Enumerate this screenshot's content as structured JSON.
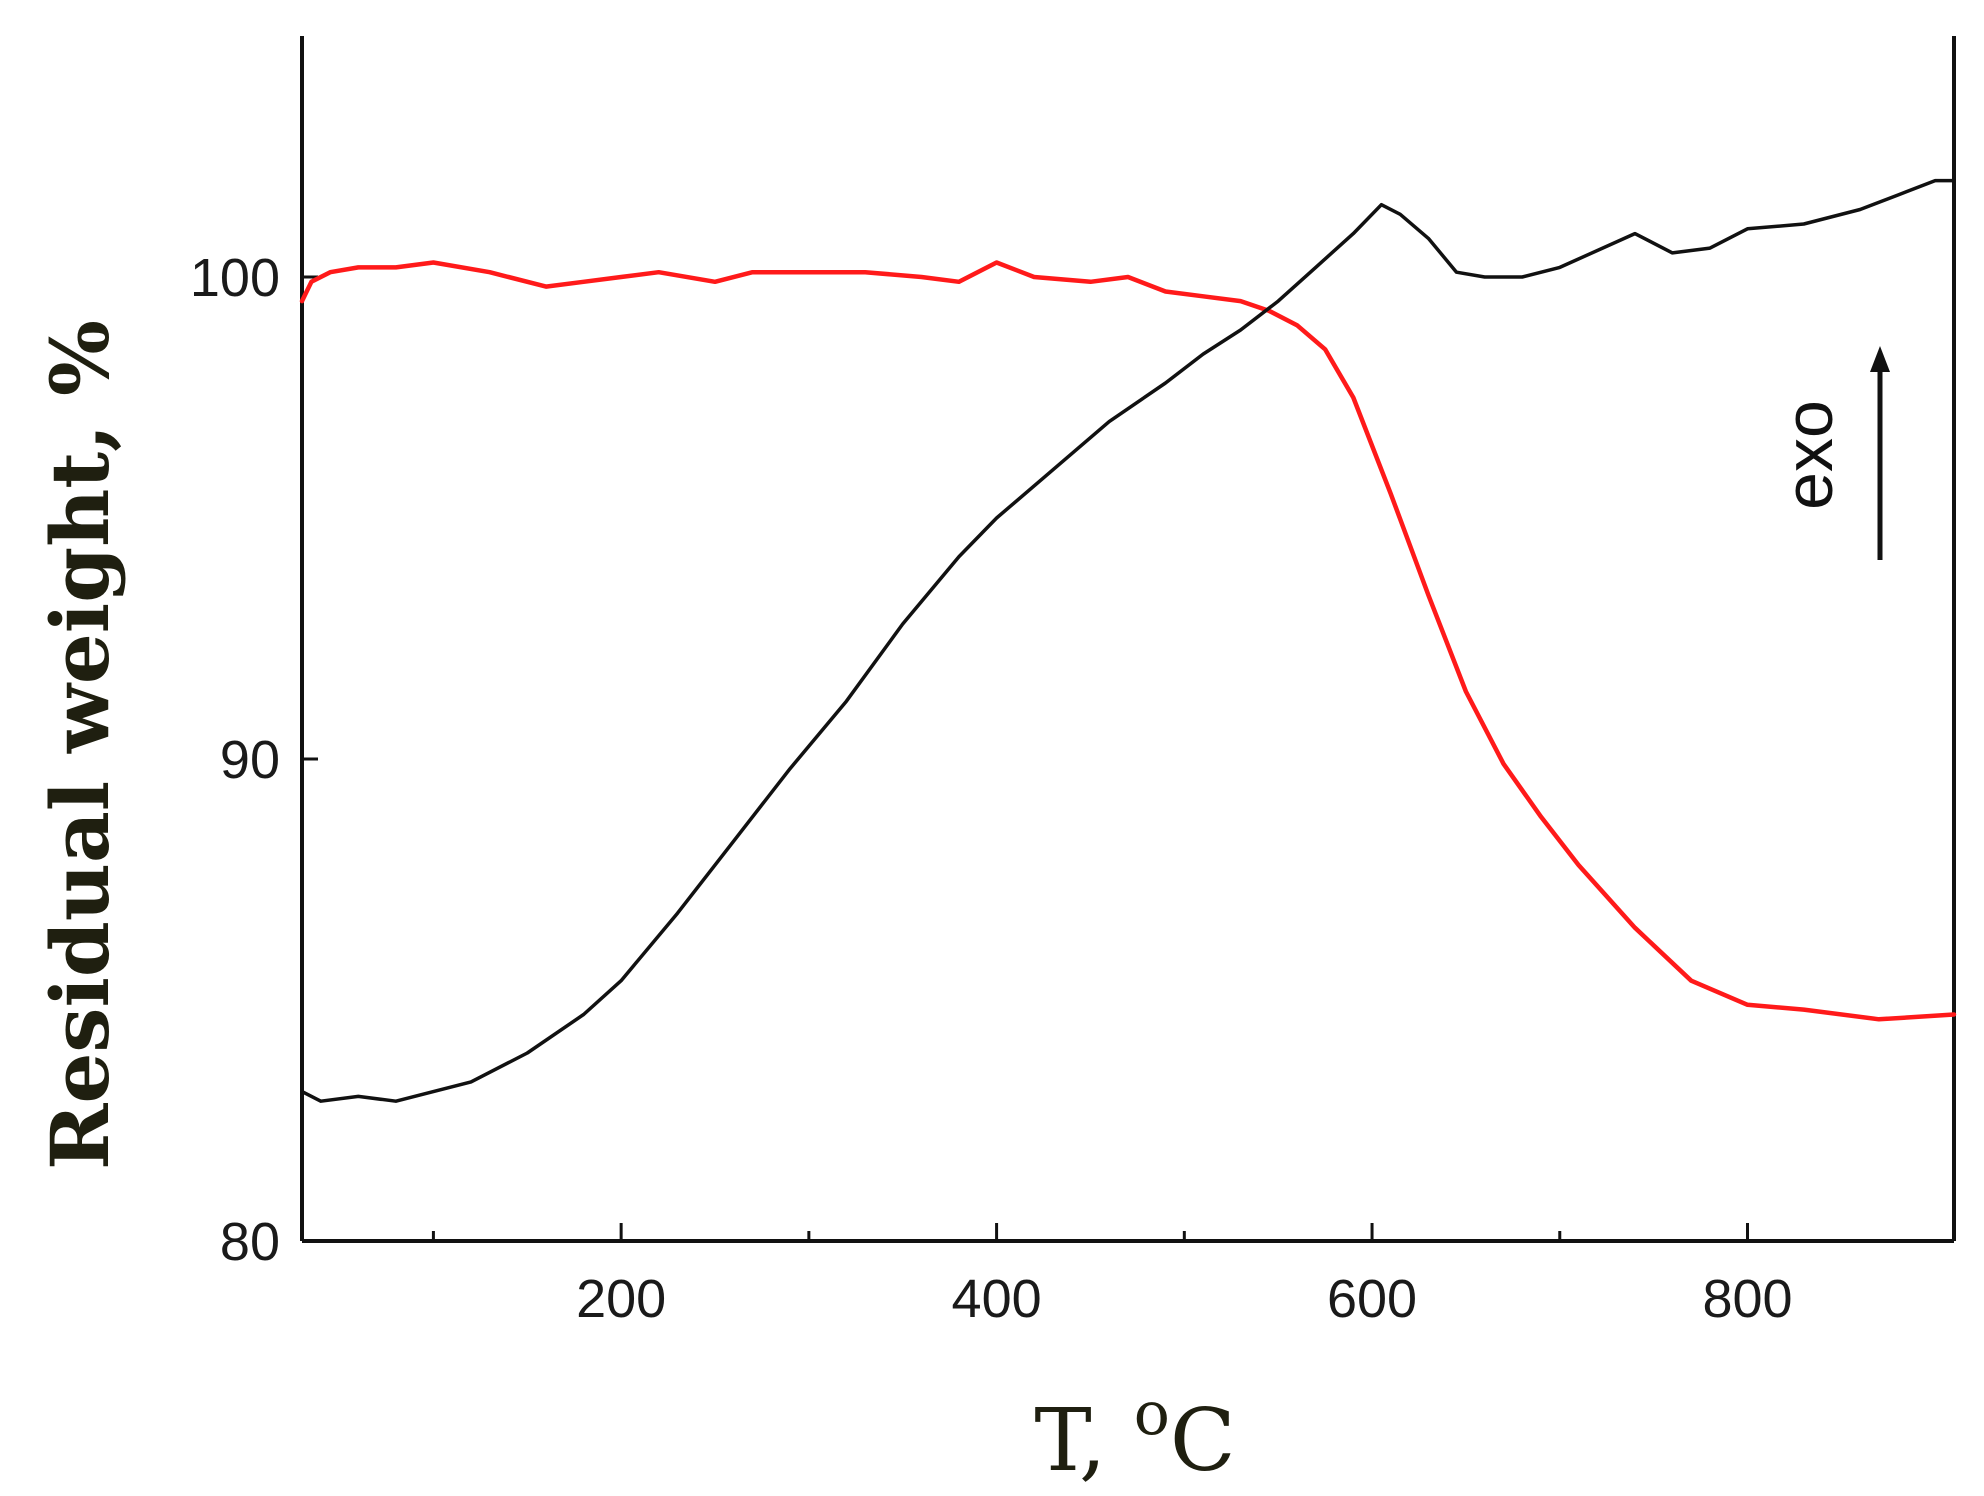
{
  "chart_data": {
    "type": "line",
    "title": "",
    "xlabel": "T, ",
    "xlabel_superscript": "o",
    "xlabel_unit": "C",
    "ylabel": "Residual weight, %",
    "xlim": [
      30,
      910
    ],
    "ylim": [
      80,
      105
    ],
    "x_ticks": [
      200,
      400,
      600,
      800
    ],
    "x_minor_ticks": [
      100,
      300,
      500,
      700
    ],
    "y_ticks": [
      80,
      90,
      100
    ],
    "grid": false,
    "annotation": {
      "text": "exo",
      "arrow": "up"
    },
    "series": [
      {
        "color": "#ff1a1a",
        "x": [
          30,
          35,
          45,
          60,
          80,
          100,
          130,
          160,
          180,
          200,
          220,
          250,
          270,
          300,
          330,
          360,
          380,
          400,
          420,
          450,
          470,
          490,
          510,
          530,
          545,
          560,
          575,
          590,
          610,
          630,
          650,
          670,
          690,
          710,
          740,
          770,
          800,
          830,
          870,
          910
        ],
        "y": [
          99.5,
          99.9,
          100.1,
          100.2,
          100.2,
          100.3,
          100.1,
          99.8,
          99.9,
          100.0,
          100.1,
          99.9,
          100.1,
          100.1,
          100.1,
          100.0,
          99.9,
          100.3,
          100.0,
          99.9,
          100.0,
          99.7,
          99.6,
          99.5,
          99.3,
          99.0,
          98.5,
          97.5,
          95.5,
          93.4,
          91.4,
          89.9,
          88.8,
          87.8,
          86.5,
          85.4,
          84.9,
          84.8,
          84.6,
          84.7
        ]
      },
      {
        "color": "#111111",
        "x": [
          30,
          40,
          60,
          80,
          100,
          120,
          150,
          180,
          200,
          230,
          260,
          290,
          320,
          350,
          380,
          400,
          430,
          460,
          490,
          510,
          530,
          550,
          570,
          590,
          605,
          615,
          630,
          645,
          660,
          680,
          700,
          740,
          760,
          780,
          800,
          830,
          860,
          880,
          900,
          910
        ],
        "y": [
          83.1,
          82.9,
          83.0,
          82.9,
          83.1,
          83.3,
          83.9,
          84.7,
          85.4,
          86.8,
          88.3,
          89.8,
          91.2,
          92.8,
          94.2,
          95.0,
          96.0,
          97.0,
          97.8,
          98.4,
          98.9,
          99.5,
          100.2,
          100.9,
          101.5,
          101.3,
          100.8,
          100.1,
          100.0,
          100.0,
          100.2,
          100.9,
          100.5,
          100.6,
          101.0,
          101.1,
          101.4,
          101.7,
          102.0,
          102.0
        ]
      }
    ]
  }
}
